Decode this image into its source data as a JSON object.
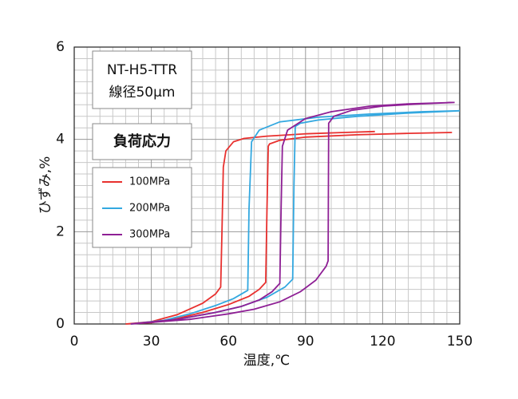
{
  "chart_data": {
    "type": "line",
    "annotation": [
      "NT-H5-TTR",
      "線径50μm"
    ],
    "legend_title": "負荷応力",
    "xlabel": "温度,℃",
    "ylabel": "ひずみ,%",
    "xlim": [
      0,
      150
    ],
    "xticks": [
      0,
      30,
      60,
      90,
      120,
      150
    ],
    "ylim": [
      0,
      6
    ],
    "yticks": [
      0,
      2,
      4,
      6
    ],
    "grid": true,
    "minor_grid": true,
    "legend_position": "upper left",
    "series": [
      {
        "name": "100MPa",
        "color": "#e8302e",
        "x": [
          20,
          30,
          40,
          50,
          55,
          57,
          57.5,
          58,
          59,
          62,
          66,
          75,
          90,
          105,
          117,
          null,
          20,
          30,
          40,
          50,
          60,
          68,
          72,
          74.5,
          75,
          75.5,
          76,
          80,
          90,
          110,
          130,
          147
        ],
        "values": [
          0,
          0.05,
          0.2,
          0.45,
          0.65,
          0.8,
          2.0,
          3.4,
          3.75,
          3.95,
          4.02,
          4.07,
          4.12,
          4.15,
          4.17,
          null,
          0,
          0.03,
          0.12,
          0.25,
          0.42,
          0.6,
          0.75,
          0.9,
          2.5,
          3.85,
          3.9,
          3.98,
          4.05,
          4.1,
          4.13,
          4.15
        ]
      },
      {
        "name": "200MPa",
        "color": "#33a8e0",
        "x": [
          22,
          35,
          45,
          55,
          62,
          66,
          67.5,
          68,
          69,
          72,
          80,
          95,
          115,
          135,
          150,
          null,
          22,
          40,
          55,
          65,
          75,
          82,
          85,
          85.5,
          86,
          88,
          95,
          110,
          130,
          150
        ],
        "values": [
          0,
          0.08,
          0.22,
          0.4,
          0.55,
          0.68,
          0.73,
          2.5,
          3.95,
          4.2,
          4.38,
          4.48,
          4.55,
          4.6,
          4.62,
          null,
          0,
          0.1,
          0.25,
          0.38,
          0.58,
          0.8,
          0.97,
          3.0,
          4.28,
          4.35,
          4.42,
          4.5,
          4.57,
          4.62
        ]
      },
      {
        "name": "300MPa",
        "color": "#8e1f95",
        "x": [
          22,
          40,
          55,
          65,
          72,
          77,
          80,
          80.5,
          81,
          83,
          90,
          100,
          115,
          130,
          148,
          null,
          22,
          45,
          60,
          70,
          80,
          88,
          94,
          98,
          98.8,
          99,
          101,
          108,
          120,
          135,
          148
        ],
        "values": [
          0,
          0.1,
          0.25,
          0.38,
          0.52,
          0.7,
          0.88,
          2.5,
          3.85,
          4.2,
          4.45,
          4.6,
          4.72,
          4.77,
          4.8,
          null,
          0,
          0.1,
          0.22,
          0.32,
          0.48,
          0.7,
          0.95,
          1.25,
          1.37,
          4.35,
          4.5,
          4.63,
          4.72,
          4.77,
          4.8
        ]
      }
    ]
  }
}
